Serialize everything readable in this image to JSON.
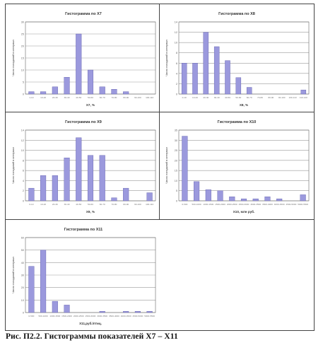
{
  "caption": "Рис. П2.2. Гистограммы показателей Х7 – Х11",
  "style": {
    "bar_fill": "#9b99dd",
    "bar_stroke": "#5f5dab",
    "grid": "#9a9a9a",
    "axis": "#666666"
  },
  "chart_data": [
    {
      "type": "bar",
      "title": "Гистограмма по Х7",
      "xlabel": "Х7, %",
      "ylabel": "Число попаданий в интервал",
      "ylim": [
        0,
        30
      ],
      "yticks": [
        0,
        5,
        10,
        15,
        20,
        25,
        30
      ],
      "categories": [
        "1-10",
        "10-20",
        "20-30",
        "30-40",
        "40-50",
        "50-60",
        "60-70",
        "70-80",
        "80-90",
        "90-100",
        "100-110"
      ],
      "values": [
        1,
        1,
        3,
        7,
        25,
        10,
        3,
        2,
        1,
        0,
        0
      ]
    },
    {
      "type": "bar",
      "title": "Гистограмма по Х8",
      "xlabel": "Х8, %",
      "ylabel": "Число попаданий в интервал",
      "ylim": [
        0,
        14
      ],
      "yticks": [
        0,
        2,
        4,
        6,
        8,
        10,
        12,
        14
      ],
      "categories": [
        "0-10",
        "10-20",
        "20-30",
        "30-40",
        "40-50",
        "50-60",
        "60-70",
        "70-80",
        "80-90",
        "90-100",
        "100-110",
        "110-120"
      ],
      "values": [
        6,
        6,
        12,
        9.2,
        6.5,
        3.2,
        1.3,
        0,
        0,
        0,
        0,
        0.8
      ]
    },
    {
      "type": "bar",
      "title": "Гистограмма по Х9",
      "xlabel": "Х9, %",
      "ylabel": "Число попаданий в интервал",
      "ylim": [
        0,
        14
      ],
      "yticks": [
        0,
        2,
        4,
        6,
        8,
        10,
        12,
        14
      ],
      "categories": [
        "0-10",
        "10-20",
        "20-30",
        "30-40",
        "40-50",
        "50-60",
        "60-70",
        "70-80",
        "80-90",
        "90-100",
        "100-110"
      ],
      "values": [
        2.5,
        5,
        5,
        8.5,
        12.5,
        9,
        9,
        0.6,
        2.5,
        0,
        1.6
      ]
    },
    {
      "type": "bar",
      "title": "Гистограмма по Х10",
      "xlabel": "Х10, млн руб.",
      "ylabel": "Число попаданий в интервал",
      "ylim": [
        0,
        35
      ],
      "yticks": [
        0,
        5,
        10,
        15,
        20,
        25,
        30,
        35
      ],
      "categories": [
        "0-500",
        "500-1000",
        "1000-1500",
        "1500-2000",
        "2000-2500",
        "2500-3000",
        "3000-3500",
        "3500-4000",
        "4000-4500",
        "4500-5000",
        "5000-5500"
      ],
      "values": [
        32,
        9.5,
        5.5,
        5,
        2,
        1,
        1,
        2,
        1,
        0,
        3
      ]
    },
    {
      "type": "bar",
      "title": "Гистограмма по Х11",
      "xlabel": "Х11,руб./птиц.",
      "ylabel": "Число попаданий в интервал",
      "ylim": [
        0,
        60
      ],
      "yticks": [
        0,
        10,
        20,
        30,
        40,
        50,
        60
      ],
      "categories": [
        "0-500",
        "500-1000",
        "1000-1500",
        "1500-2000",
        "2000-2500",
        "2500-3000",
        "3000-3500",
        "3500-4000",
        "4000-4500",
        "4500-5000",
        "5000-5500"
      ],
      "values": [
        37,
        50,
        9,
        6,
        0,
        0,
        1,
        0,
        1,
        1,
        1
      ]
    }
  ]
}
